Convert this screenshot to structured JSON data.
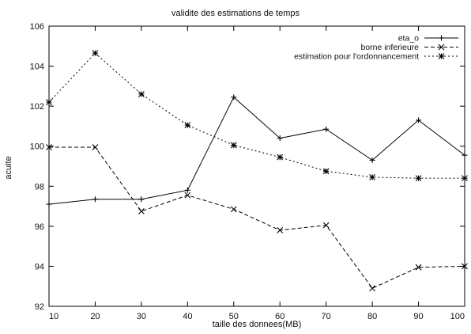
{
  "chart_data": {
    "type": "line",
    "title": "validite des estimations de temps",
    "xlabel": "taille des donnees(MB)",
    "ylabel": "acuite",
    "xlim": [
      10,
      100
    ],
    "ylim": [
      92,
      106
    ],
    "x": [
      10,
      20,
      30,
      40,
      50,
      60,
      70,
      80,
      90,
      100
    ],
    "x_ticks": [
      "10",
      "20",
      "30",
      "40",
      "50",
      "60",
      "70",
      "80",
      "90",
      "100"
    ],
    "y_ticks": [
      "92",
      "94",
      "96",
      "98",
      "100",
      "102",
      "104",
      "106"
    ],
    "grid": false,
    "legend_position": "top-right",
    "series": [
      {
        "name": "eta_o",
        "marker": "plus",
        "dash": "solid",
        "values": [
          97.1,
          97.35,
          97.35,
          97.8,
          102.45,
          100.4,
          100.85,
          99.3,
          101.3,
          99.55
        ]
      },
      {
        "name": "borne inferieure",
        "marker": "x",
        "dash": "dashed",
        "values": [
          99.95,
          99.95,
          96.75,
          97.55,
          96.85,
          95.8,
          96.05,
          92.9,
          93.95,
          94.0
        ]
      },
      {
        "name": "estimation pour l'ordonnancement",
        "marker": "star",
        "dash": "dotted",
        "values": [
          102.2,
          104.65,
          102.6,
          101.05,
          100.05,
          99.45,
          98.75,
          98.45,
          98.4,
          98.4
        ]
      }
    ]
  }
}
